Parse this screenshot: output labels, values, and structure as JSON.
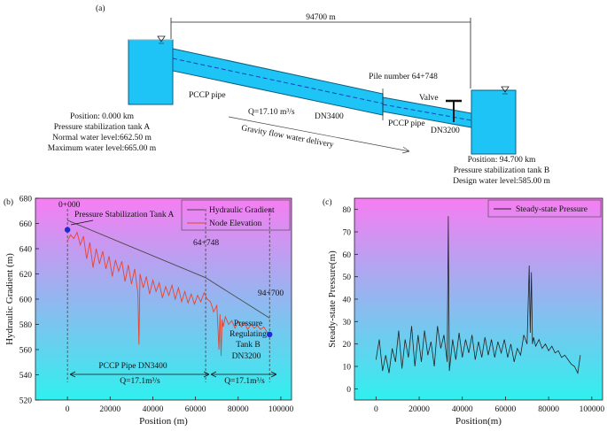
{
  "colors": {
    "water": "#1ec4f5",
    "water_stroke": "#0a5f82",
    "hgl": "#4a4a4a",
    "node": "#e8442f",
    "pressure": "#222222",
    "marker": "#1d2bd6",
    "grad_top": "#f77df2",
    "grad_bottom": "#2ff0ee"
  },
  "panel_a": {
    "label": "(a)",
    "distance": "94700 m",
    "pile": "Pile number 64+748",
    "valve": "Valve",
    "pipe1": "PCCP pipe",
    "flow": "Q=17.10 m³/s",
    "dn1": "DN3400",
    "pipe2": "PCCP pipe",
    "dn2": "DN3200",
    "gravity": "Gravity flow water delivery",
    "tank_a": [
      "Position: 0.000 km",
      "Pressure stabilization tank A",
      "Normal water level:662.50 m",
      "Maximum water level:665.00 m"
    ],
    "tank_b": [
      "Position: 94.700 km",
      "Pressure stabilization tank B",
      "Design water level:585.00 m"
    ]
  },
  "panel_b": {
    "label": "(b)",
    "annotations": {
      "start": "0+000",
      "tank_a": "Pressure Stabilization Tank A",
      "mid": "64+748",
      "end": "94+700",
      "tank_b": [
        "Pressure",
        "Regulating",
        "Tank B"
      ],
      "dn3200": "DN3200",
      "pipe": "PCCP Pipe DN3400",
      "q1": "Q=17.1m³/s",
      "q2": "Q=17.1m³/s"
    }
  },
  "panel_c": {
    "label": "(c)"
  },
  "chart_data": [
    {
      "type": "line",
      "title": "",
      "xlabel": "Position (m)",
      "ylabel": "Hydraulic Gradient (m)",
      "xlim": [
        -15000,
        105000
      ],
      "ylim": [
        520,
        680
      ],
      "xticks": [
        0,
        20000,
        40000,
        60000,
        80000,
        100000
      ],
      "yticks": [
        520,
        540,
        560,
        580,
        600,
        620,
        640,
        660,
        680
      ],
      "legend_position": "top-right",
      "series": [
        {
          "name": "Hydraulic Gradient",
          "x": [
            0,
            64748,
            94700
          ],
          "y": [
            662.5,
            617,
            585
          ]
        },
        {
          "name": "Node Elevation",
          "x": [
            0,
            1500,
            3000,
            4500,
            6000,
            7500,
            9000,
            10500,
            12000,
            13500,
            15000,
            16500,
            18000,
            19500,
            21000,
            22500,
            24000,
            25500,
            27000,
            28500,
            30000,
            31500,
            33000,
            33500,
            34000,
            35500,
            37000,
            38500,
            40000,
            41500,
            43000,
            44500,
            46000,
            47500,
            49000,
            50500,
            52000,
            53500,
            55000,
            56500,
            58000,
            59500,
            61000,
            62500,
            64000,
            65500,
            67000,
            68500,
            70000,
            71000,
            71500,
            72000,
            72500,
            73000,
            74000,
            75500,
            77000,
            78500,
            80000,
            81500,
            83000,
            84500,
            86000,
            87500,
            89000,
            90500,
            92000,
            93500,
            94700
          ],
          "y": [
            646,
            651,
            648,
            653,
            643,
            650,
            632,
            645,
            625,
            640,
            628,
            638,
            624,
            634,
            618,
            631,
            622,
            630,
            614,
            627,
            612,
            624,
            605,
            564,
            620,
            609,
            618,
            604,
            615,
            606,
            613,
            601,
            610,
            603,
            611,
            600,
            609,
            598,
            606,
            597,
            604,
            596,
            603,
            598,
            605,
            600,
            598,
            590,
            595,
            560,
            588,
            555,
            584,
            578,
            586,
            580,
            583,
            577,
            582,
            578,
            581,
            576,
            580,
            577,
            579,
            576,
            578,
            574,
            572
          ]
        }
      ]
    },
    {
      "type": "line",
      "title": "",
      "xlabel": "Position(m)",
      "ylabel": "Steady-state Pressure(m)",
      "xlim": [
        -10000,
        105000
      ],
      "ylim": [
        -5,
        85
      ],
      "xticks": [
        0,
        20000,
        40000,
        60000,
        80000,
        100000
      ],
      "yticks": [
        0,
        10,
        20,
        30,
        40,
        50,
        60,
        70,
        80
      ],
      "legend_position": "top-right",
      "series": [
        {
          "name": "Steady-state Pressure",
          "x": [
            0,
            1500,
            3000,
            4500,
            6000,
            7500,
            9000,
            10500,
            12000,
            13500,
            15000,
            16500,
            18000,
            19500,
            21000,
            22500,
            24000,
            25500,
            27000,
            28500,
            30000,
            31500,
            33000,
            33500,
            34000,
            35500,
            37000,
            38500,
            40000,
            41500,
            43000,
            44500,
            46000,
            47500,
            49000,
            50500,
            52000,
            53500,
            55000,
            56500,
            58000,
            59500,
            61000,
            62500,
            64000,
            65500,
            67000,
            68500,
            70000,
            71000,
            71500,
            72000,
            72500,
            73000,
            74000,
            75500,
            77000,
            78500,
            80000,
            81500,
            83000,
            84500,
            86000,
            87500,
            89000,
            90500,
            92000,
            93500,
            94700
          ],
          "y": [
            13,
            22,
            8,
            15,
            7,
            18,
            12,
            26,
            9,
            22,
            14,
            28,
            10,
            24,
            12,
            26,
            15,
            21,
            10,
            28,
            18,
            24,
            12,
            77,
            8,
            22,
            13,
            25,
            14,
            22,
            16,
            24,
            13,
            21,
            14,
            23,
            15,
            22,
            14,
            21,
            16,
            22,
            14,
            20,
            12,
            18,
            15,
            24,
            20,
            55,
            25,
            52,
            20,
            23,
            19,
            22,
            18,
            20,
            17,
            19,
            16,
            17,
            14,
            15,
            13,
            11,
            10,
            7,
            15
          ]
        }
      ]
    }
  ]
}
